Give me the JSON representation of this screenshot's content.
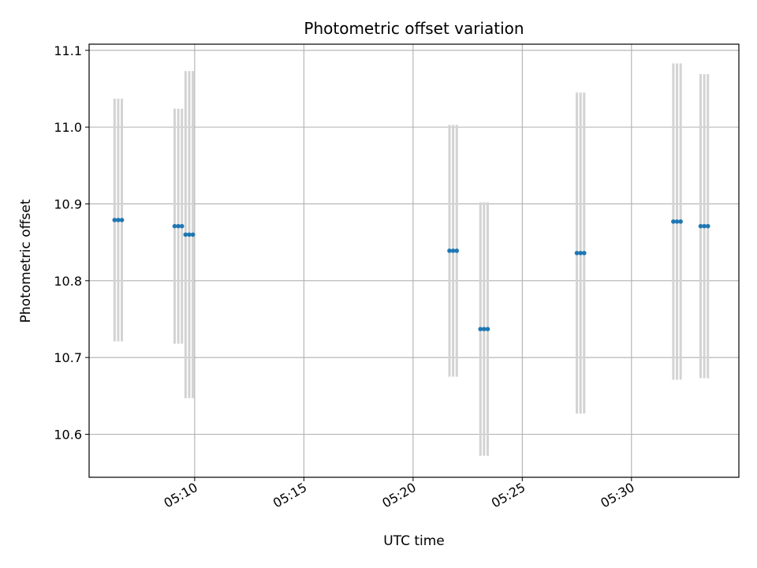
{
  "chart_data": {
    "type": "scatter",
    "title": "Photometric offset variation",
    "xlabel": "UTC time",
    "ylabel": "Photometric offset",
    "x_unit": "UTC",
    "xlim": [
      "05:05:10",
      "05:34:55"
    ],
    "ylim": [
      10.544,
      11.108
    ],
    "x_ticks": [
      "05:10",
      "05:15",
      "05:20",
      "05:25",
      "05:30"
    ],
    "y_ticks": [
      "10.6",
      "10.7",
      "10.8",
      "10.9",
      "11.0",
      "11.1"
    ],
    "grid": true,
    "marker_color": "#1f77b4",
    "errorbar_color": "#d3d3d3",
    "series": [
      {
        "points": [
          {
            "time": "05:06:20",
            "y": 10.879,
            "err": 0.158
          },
          {
            "time": "05:06:30",
            "y": 10.879,
            "err": 0.158
          },
          {
            "time": "05:06:40",
            "y": 10.879,
            "err": 0.158
          },
          {
            "time": "05:09:05",
            "y": 10.871,
            "err": 0.153
          },
          {
            "time": "05:09:15",
            "y": 10.871,
            "err": 0.153
          },
          {
            "time": "05:09:25",
            "y": 10.871,
            "err": 0.153
          },
          {
            "time": "05:09:35",
            "y": 10.86,
            "err": 0.213
          },
          {
            "time": "05:09:45",
            "y": 10.86,
            "err": 0.213
          },
          {
            "time": "05:09:55",
            "y": 10.86,
            "err": 0.213
          },
          {
            "time": "05:21:40",
            "y": 10.839,
            "err": 0.164
          },
          {
            "time": "05:21:50",
            "y": 10.839,
            "err": 0.164
          },
          {
            "time": "05:22:00",
            "y": 10.839,
            "err": 0.164
          },
          {
            "time": "05:23:05",
            "y": 10.737,
            "err": 0.165
          },
          {
            "time": "05:23:15",
            "y": 10.737,
            "err": 0.165
          },
          {
            "time": "05:23:25",
            "y": 10.737,
            "err": 0.165
          },
          {
            "time": "05:27:30",
            "y": 10.836,
            "err": 0.209
          },
          {
            "time": "05:27:40",
            "y": 10.836,
            "err": 0.209
          },
          {
            "time": "05:27:50",
            "y": 10.836,
            "err": 0.209
          },
          {
            "time": "05:31:55",
            "y": 10.877,
            "err": 0.206
          },
          {
            "time": "05:32:05",
            "y": 10.877,
            "err": 0.206
          },
          {
            "time": "05:32:15",
            "y": 10.877,
            "err": 0.206
          },
          {
            "time": "05:33:10",
            "y": 10.871,
            "err": 0.198
          },
          {
            "time": "05:33:20",
            "y": 10.871,
            "err": 0.198
          },
          {
            "time": "05:33:30",
            "y": 10.871,
            "err": 0.198
          }
        ]
      }
    ]
  }
}
